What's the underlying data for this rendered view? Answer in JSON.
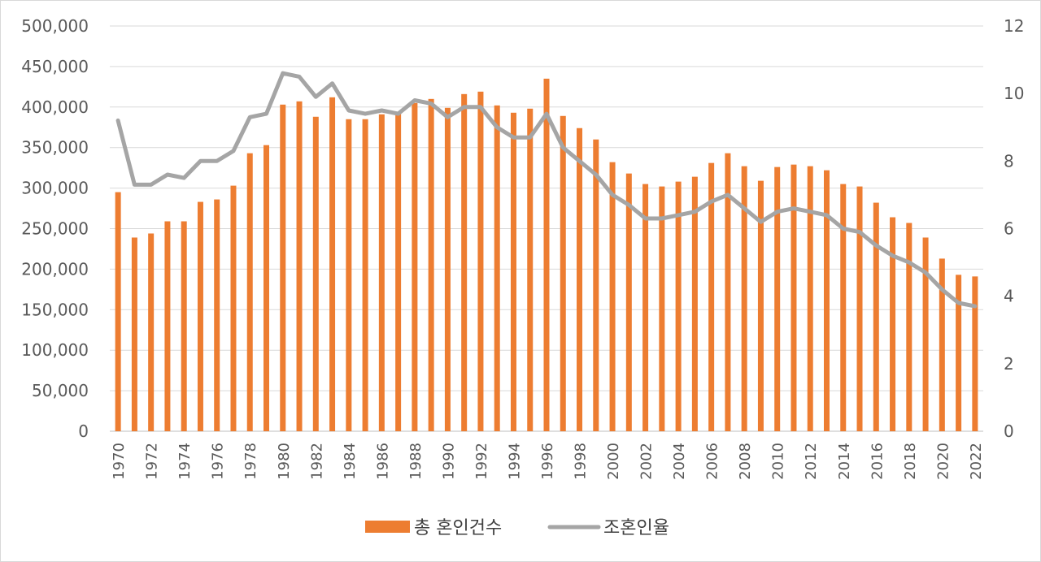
{
  "chart_data": {
    "type": "bar",
    "title": "",
    "xlabel": "",
    "ylabel": "",
    "x": [
      1970,
      1971,
      1972,
      1973,
      1974,
      1975,
      1976,
      1977,
      1978,
      1979,
      1980,
      1981,
      1982,
      1983,
      1984,
      1985,
      1986,
      1987,
      1988,
      1989,
      1990,
      1991,
      1992,
      1993,
      1994,
      1995,
      1996,
      1997,
      1998,
      1999,
      2000,
      2001,
      2002,
      2003,
      2004,
      2005,
      2006,
      2007,
      2008,
      2009,
      2010,
      2011,
      2012,
      2013,
      2014,
      2015,
      2016,
      2017,
      2018,
      2019,
      2020,
      2021,
      2022
    ],
    "x_tick_labels": [
      "1970",
      "1972",
      "1974",
      "1976",
      "1978",
      "1980",
      "1982",
      "1984",
      "1986",
      "1988",
      "1990",
      "1992",
      "1994",
      "1996",
      "1998",
      "2000",
      "2002",
      "2004",
      "2006",
      "2008",
      "2010",
      "2012",
      "2014",
      "2016",
      "2018",
      "2020",
      "2022"
    ],
    "y_left_ticks": [
      "0",
      "50,000",
      "100,000",
      "150,000",
      "200,000",
      "250,000",
      "300,000",
      "350,000",
      "400,000",
      "450,000",
      "500,000"
    ],
    "y_right_ticks": [
      "0",
      "2",
      "4",
      "6",
      "8",
      "10",
      "12"
    ],
    "ylim_left": [
      0,
      500000
    ],
    "ylim_right": [
      0,
      12
    ],
    "grid": true,
    "legend_position": "bottom",
    "series": [
      {
        "name": "총 혼인건수",
        "type": "bar",
        "axis": "left",
        "color": "#ED7D31",
        "values": [
          295000,
          239000,
          244000,
          259000,
          259000,
          283000,
          286000,
          303000,
          343000,
          353000,
          403000,
          407000,
          388000,
          412000,
          385000,
          385000,
          391000,
          394000,
          405000,
          410000,
          399000,
          416000,
          419000,
          402000,
          393000,
          398000,
          435000,
          389000,
          374000,
          360000,
          332000,
          318000,
          305000,
          302000,
          308000,
          314000,
          331000,
          343000,
          327000,
          309000,
          326000,
          329000,
          327000,
          322000,
          305000,
          302000,
          282000,
          264000,
          257000,
          239000,
          213000,
          193000,
          191000
        ]
      },
      {
        "name": "조혼인율",
        "type": "line",
        "axis": "right",
        "color": "#A5A5A5",
        "values": [
          9.2,
          7.3,
          7.3,
          7.6,
          7.5,
          8.0,
          8.0,
          8.3,
          9.3,
          9.4,
          10.6,
          10.5,
          9.9,
          10.3,
          9.5,
          9.4,
          9.5,
          9.4,
          9.8,
          9.7,
          9.3,
          9.6,
          9.6,
          9.0,
          8.7,
          8.7,
          9.4,
          8.4,
          8.0,
          7.6,
          7.0,
          6.7,
          6.3,
          6.3,
          6.4,
          6.5,
          6.8,
          7.0,
          6.6,
          6.2,
          6.5,
          6.6,
          6.5,
          6.4,
          6.0,
          5.9,
          5.5,
          5.2,
          5.0,
          4.7,
          4.2,
          3.8,
          3.7
        ]
      }
    ]
  }
}
